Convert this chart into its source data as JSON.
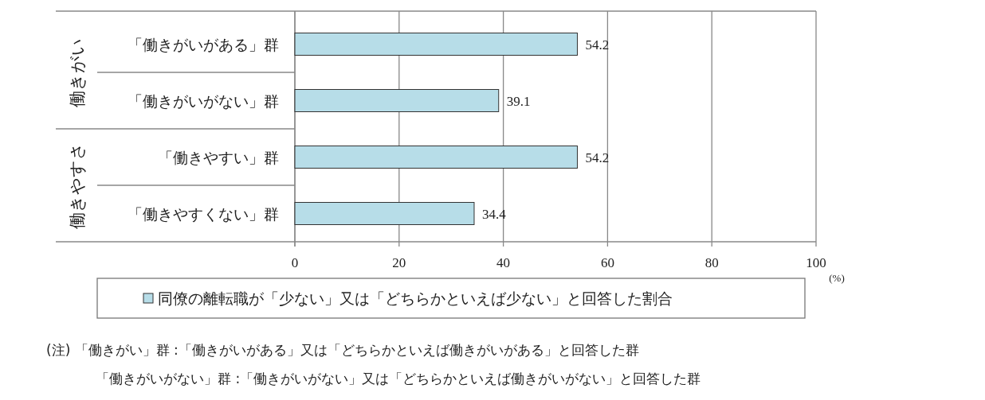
{
  "chart_data": {
    "type": "bar",
    "orientation": "horizontal",
    "categories": [
      "「働きがいがある」群",
      "「働きがいがない」群",
      "「働きやすい」群",
      "「働きやすくない」群"
    ],
    "series": [
      {
        "name": "同僚の離転職が「少ない」又は「どちらかといえば少ない」と回答した割合",
        "color": "#b7dde8",
        "values": [
          54.2,
          39.1,
          54.2,
          34.4
        ]
      }
    ],
    "data_labels": true,
    "xlim": [
      0,
      100
    ],
    "xticks": [
      0,
      20,
      40,
      60,
      80,
      100
    ],
    "xlabel": "(%)",
    "grid": "x",
    "legend": "bottom",
    "annotations": [
      "働きがい",
      "働きやすさ",
      "(注) 「働きがい」群 :「働きがいがある」又は「どちらかといえば働きがいがある」と回答した群",
      "「働きがいがない」群 :「働きがいがない」又は「どちらかといえば働きがいがない」と回答した群"
    ]
  }
}
